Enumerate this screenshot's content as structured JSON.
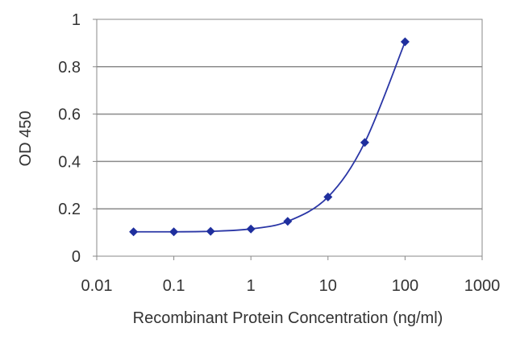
{
  "chart_data": {
    "type": "scatter",
    "title": "",
    "xlabel": "Recombinant Protein Concentration (ng/ml)",
    "ylabel": "OD 450",
    "x_scale": "log",
    "xlim": [
      0.01,
      1000
    ],
    "ylim": [
      0,
      1
    ],
    "x_ticks": [
      "0.01",
      "0.1",
      "1",
      "10",
      "100",
      "1000"
    ],
    "y_ticks": [
      "0",
      "0.2",
      "0.4",
      "0.6",
      "0.8",
      "1"
    ],
    "grid": "horizontal",
    "series": [
      {
        "color": "#1f2f9e",
        "marker": "diamond",
        "line": "smooth",
        "x": [
          0.03,
          0.1,
          0.3,
          1,
          3,
          10,
          30,
          100
        ],
        "y": [
          0.103,
          0.103,
          0.105,
          0.115,
          0.147,
          0.25,
          0.48,
          0.905
        ]
      }
    ]
  }
}
